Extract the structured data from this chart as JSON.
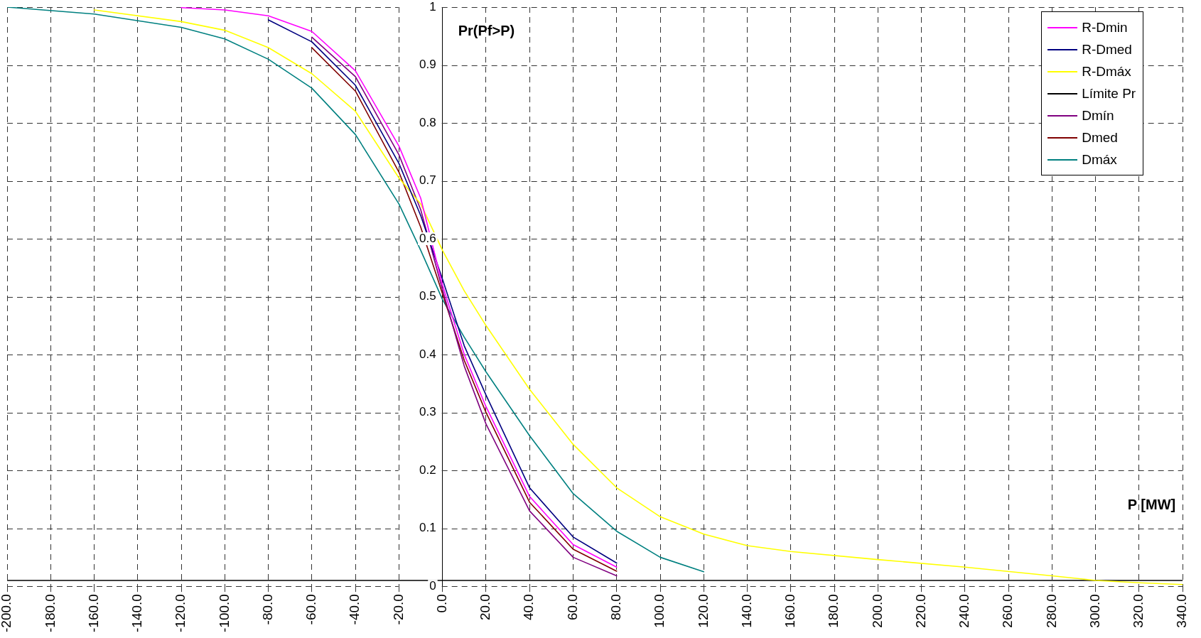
{
  "chart_data": {
    "type": "line",
    "xlabel": "P [MW]",
    "ylabel": "Pr(Pf>P)",
    "xlim": [
      -200,
      340
    ],
    "xticks": [
      {
        "value": -200,
        "label": "-200.0"
      },
      {
        "value": -180,
        "label": "-180.0"
      },
      {
        "value": -160,
        "label": "-160.0"
      },
      {
        "value": -140,
        "label": "-140.0"
      },
      {
        "value": -120,
        "label": "-120.0"
      },
      {
        "value": -100,
        "label": "-100.0"
      },
      {
        "value": -80,
        "label": "-80.0"
      },
      {
        "value": -60,
        "label": "-60.0"
      },
      {
        "value": -40,
        "label": "-40.0"
      },
      {
        "value": -20,
        "label": "-20.0"
      },
      {
        "value": 0,
        "label": "0.0"
      },
      {
        "value": 20,
        "label": "20.0"
      },
      {
        "value": 40,
        "label": "40.0"
      },
      {
        "value": 60,
        "label": "60.0"
      },
      {
        "value": 80,
        "label": "80.0"
      },
      {
        "value": 100,
        "label": "100.0"
      },
      {
        "value": 120,
        "label": "120.0"
      },
      {
        "value": 140,
        "label": "140.0"
      },
      {
        "value": 160,
        "label": "160.0"
      },
      {
        "value": 180,
        "label": "180.0"
      },
      {
        "value": 200,
        "label": "200.0"
      },
      {
        "value": 220,
        "label": "220.0"
      },
      {
        "value": 240,
        "label": "240.0"
      },
      {
        "value": 260,
        "label": "260.0"
      },
      {
        "value": 280,
        "label": "280.0"
      },
      {
        "value": 300,
        "label": "300.0"
      },
      {
        "value": 320,
        "label": "320.0"
      },
      {
        "value": 340,
        "label": "340.0"
      }
    ],
    "ylim": [
      0,
      1
    ],
    "yticks": [
      0,
      0.1,
      0.2,
      0.3,
      0.4,
      0.5,
      0.6,
      0.7,
      0.8,
      0.9,
      1
    ],
    "x": [
      -200,
      -160,
      -120,
      -100,
      -80,
      -60,
      -40,
      -20,
      -10,
      0,
      10,
      20,
      40,
      60,
      80,
      100,
      120,
      140,
      160,
      200,
      240,
      280,
      300,
      320,
      340
    ],
    "series": [
      {
        "name": "R-Dmin",
        "color": "#ff00ff",
        "values": [
          null,
          null,
          0.999,
          0.995,
          0.985,
          0.958,
          0.89,
          0.76,
          0.67,
          0.52,
          0.4,
          0.31,
          0.155,
          0.072,
          0.033,
          null,
          null,
          null,
          null,
          null,
          null,
          null,
          null,
          null,
          null
        ]
      },
      {
        "name": "R-Dmed",
        "color": "#000080",
        "values": [
          null,
          null,
          null,
          null,
          0.978,
          0.94,
          0.865,
          0.73,
          0.64,
          0.53,
          0.415,
          0.33,
          0.17,
          0.085,
          0.04,
          null,
          null,
          null,
          null,
          null,
          null,
          null,
          null,
          null,
          null
        ]
      },
      {
        "name": "R-Dmáx",
        "color": "#ffff00",
        "values": [
          null,
          0.995,
          0.975,
          0.96,
          0.93,
          0.885,
          0.82,
          0.705,
          0.66,
          0.58,
          0.51,
          0.45,
          0.34,
          0.245,
          0.17,
          0.12,
          0.09,
          0.07,
          0.06,
          0.046,
          0.033,
          0.018,
          0.01,
          0.006,
          0.003
        ]
      },
      {
        "name": "Límite Pr",
        "color": "#000000",
        "x": [
          -200,
          340
        ],
        "values": [
          0.01,
          0.01
        ]
      },
      {
        "name": "Dmín",
        "color": "#800080",
        "values": [
          null,
          null,
          null,
          null,
          null,
          0.948,
          0.88,
          0.745,
          0.65,
          0.512,
          0.38,
          0.28,
          0.13,
          0.05,
          0.018,
          null,
          null,
          null,
          null,
          null,
          null,
          null,
          null,
          null,
          null
        ]
      },
      {
        "name": "Dmed",
        "color": "#800000",
        "values": [
          null,
          null,
          null,
          null,
          null,
          0.93,
          0.855,
          0.715,
          0.62,
          0.505,
          0.39,
          0.3,
          0.145,
          0.064,
          0.026,
          null,
          null,
          null,
          null,
          null,
          null,
          null,
          null,
          null,
          null
        ]
      },
      {
        "name": "Dmáx",
        "color": "#008080",
        "values": [
          1,
          0.988,
          0.965,
          0.945,
          0.91,
          0.86,
          0.78,
          0.66,
          0.58,
          0.495,
          0.43,
          0.37,
          0.26,
          0.16,
          0.095,
          0.05,
          0.025,
          null,
          null,
          null,
          null,
          null,
          null,
          null,
          null
        ]
      }
    ],
    "grid": true,
    "legend": "top right",
    "marker": "none",
    "line_style": "solid"
  }
}
